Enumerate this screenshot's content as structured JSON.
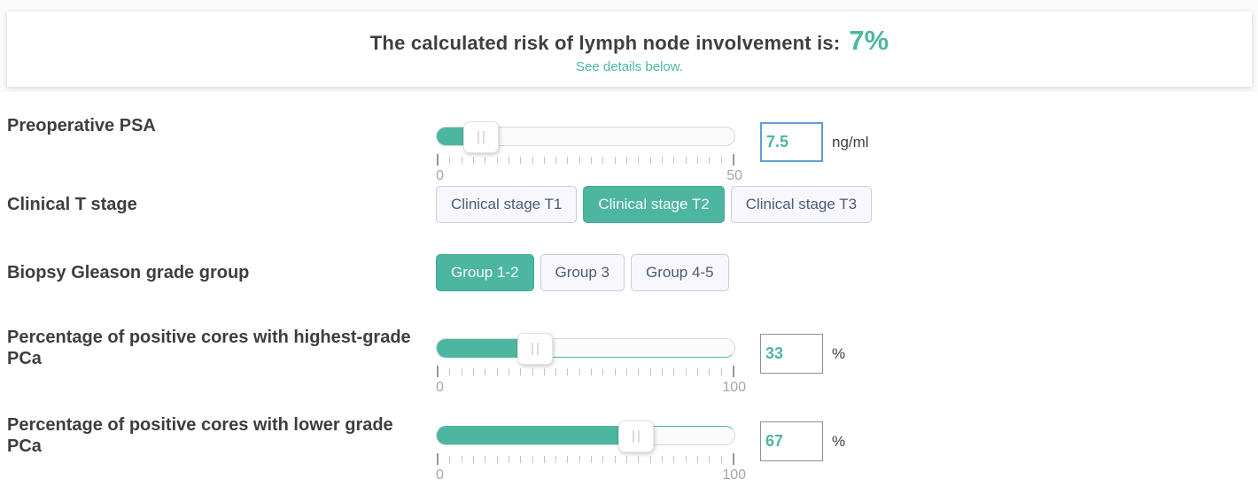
{
  "header": {
    "title_prefix": "The calculated risk of lymph node involvement is:",
    "risk_value": "7%",
    "subtitle": "See details below."
  },
  "colors": {
    "accent_teal": "#4db6a1",
    "focused_input_border": "#5e9ed6",
    "button_border": "#c7cbe8",
    "button_text": "#4c5a77"
  },
  "fields": {
    "psa": {
      "label": "Preoperative PSA",
      "value": "7.5",
      "unit": "ng/ml",
      "scale_min": "0",
      "scale_max": "50",
      "percent": 15,
      "tick_count": 26,
      "focused": true
    },
    "t_stage": {
      "label": "Clinical T stage",
      "options": [
        "Clinical stage T1",
        "Clinical stage T2",
        "Clinical stage T3"
      ],
      "selected_index": 1,
      "selected_label": "Clinical stage T2"
    },
    "gleason": {
      "label": "Biopsy Gleason grade group",
      "options": [
        "Group 1-2",
        "Group 3",
        "Group 4-5"
      ],
      "selected_index": 0,
      "selected_label": "Group 1-2"
    },
    "cores_highest": {
      "label": "Percentage of positive cores with highest-grade PCa",
      "value": "33",
      "unit": "%",
      "scale_min": "0",
      "scale_max": "100",
      "percent": 33,
      "tick_count": 26,
      "focused": false
    },
    "cores_lower": {
      "label": "Percentage of positive cores with lower grade PCa",
      "value": "67",
      "unit": "%",
      "scale_min": "0",
      "scale_max": "100",
      "percent": 67,
      "tick_count": 26,
      "focused": false
    }
  }
}
